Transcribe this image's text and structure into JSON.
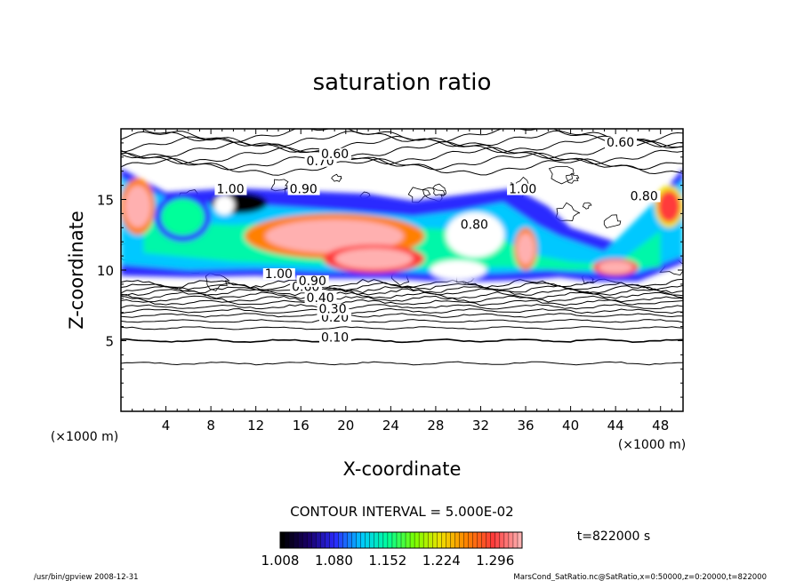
{
  "chart_data": {
    "type": "heatmap",
    "title": "saturation ratio",
    "xlabel": "X-coordinate",
    "ylabel": "Z-coordinate",
    "x_unit": "(×1000 m)",
    "z_unit": "(×1000 m)",
    "xlim": [
      0,
      50
    ],
    "ylim": [
      0,
      20
    ],
    "x_ticks": [
      4,
      8,
      12,
      16,
      20,
      24,
      28,
      32,
      36,
      40,
      44,
      48
    ],
    "y_ticks": [
      5,
      10,
      15
    ],
    "contour_interval_text": "CONTOUR INTERVAL = 5.000E-02",
    "time_label": "t=822000 s",
    "colorbar": {
      "min": 1.008,
      "max": 1.332,
      "tick_labels": [
        "1.008",
        "1.080",
        "1.152",
        "1.224",
        "1.296"
      ],
      "tick_values": [
        1.008,
        1.08,
        1.152,
        1.224,
        1.296
      ],
      "colors": [
        "#000000",
        "#1a006a",
        "#2a2aff",
        "#00c8ff",
        "#00ff9a",
        "#7aff00",
        "#f0e000",
        "#ff8000",
        "#ff3a3a",
        "#ffb0b0"
      ]
    },
    "contour_labels": [
      {
        "text": "0.10",
        "x": 17.8,
        "z": 5.0
      },
      {
        "text": "0.20",
        "x": 17.8,
        "z": 6.4
      },
      {
        "text": "0.30",
        "x": 17.6,
        "z": 7.0
      },
      {
        "text": "0.40",
        "x": 16.5,
        "z": 7.8
      },
      {
        "text": "0.60",
        "x": 15.2,
        "z": 8.6
      },
      {
        "text": "0.90",
        "x": 15.8,
        "z": 9.0
      },
      {
        "text": "1.00",
        "x": 12.8,
        "z": 9.5
      },
      {
        "text": "0.70",
        "x": 16.5,
        "z": 17.5
      },
      {
        "text": "0.60",
        "x": 17.8,
        "z": 18.0
      },
      {
        "text": "0.60",
        "x": 43.2,
        "z": 18.8
      },
      {
        "text": "1.00",
        "x": 34.5,
        "z": 15.5
      },
      {
        "text": "0.80",
        "x": 30.2,
        "z": 13.0
      },
      {
        "text": "0.80",
        "x": 45.3,
        "z": 15.0
      },
      {
        "text": "1.00",
        "x": 8.5,
        "z": 15.5
      },
      {
        "text": "0.90",
        "x": 15.0,
        "z": 15.5
      }
    ],
    "supersaturated_regions": [
      {
        "x": [
          0,
          3
        ],
        "z": [
          12.5,
          16.5
        ],
        "peak": 1.3
      },
      {
        "x": [
          3,
          8
        ],
        "z": [
          12.0,
          15.5
        ],
        "peak": 1.15
      },
      {
        "x": [
          8,
          13
        ],
        "z": [
          14.0,
          15.5
        ],
        "peak": 1.04
      },
      {
        "x": [
          11,
          27
        ],
        "z": [
          10.8,
          14.0
        ],
        "peak": 1.3
      },
      {
        "x": [
          18,
          27
        ],
        "z": [
          9.8,
          11.8
        ],
        "peak": 1.32
      },
      {
        "x": [
          35,
          37
        ],
        "z": [
          10.0,
          13.0
        ],
        "peak": 1.3
      },
      {
        "x": [
          42,
          46
        ],
        "z": [
          9.6,
          10.8
        ],
        "peak": 1.32
      },
      {
        "x": [
          47.5,
          50
        ],
        "z": [
          13.0,
          16.0
        ],
        "peak": 1.28
      }
    ]
  },
  "footer": {
    "program": "/usr/bin/gpview   2008-12-31",
    "source": "MarsCond_SatRatio.nc@SatRatio,x=0:50000,z=0:20000,t=822000"
  }
}
